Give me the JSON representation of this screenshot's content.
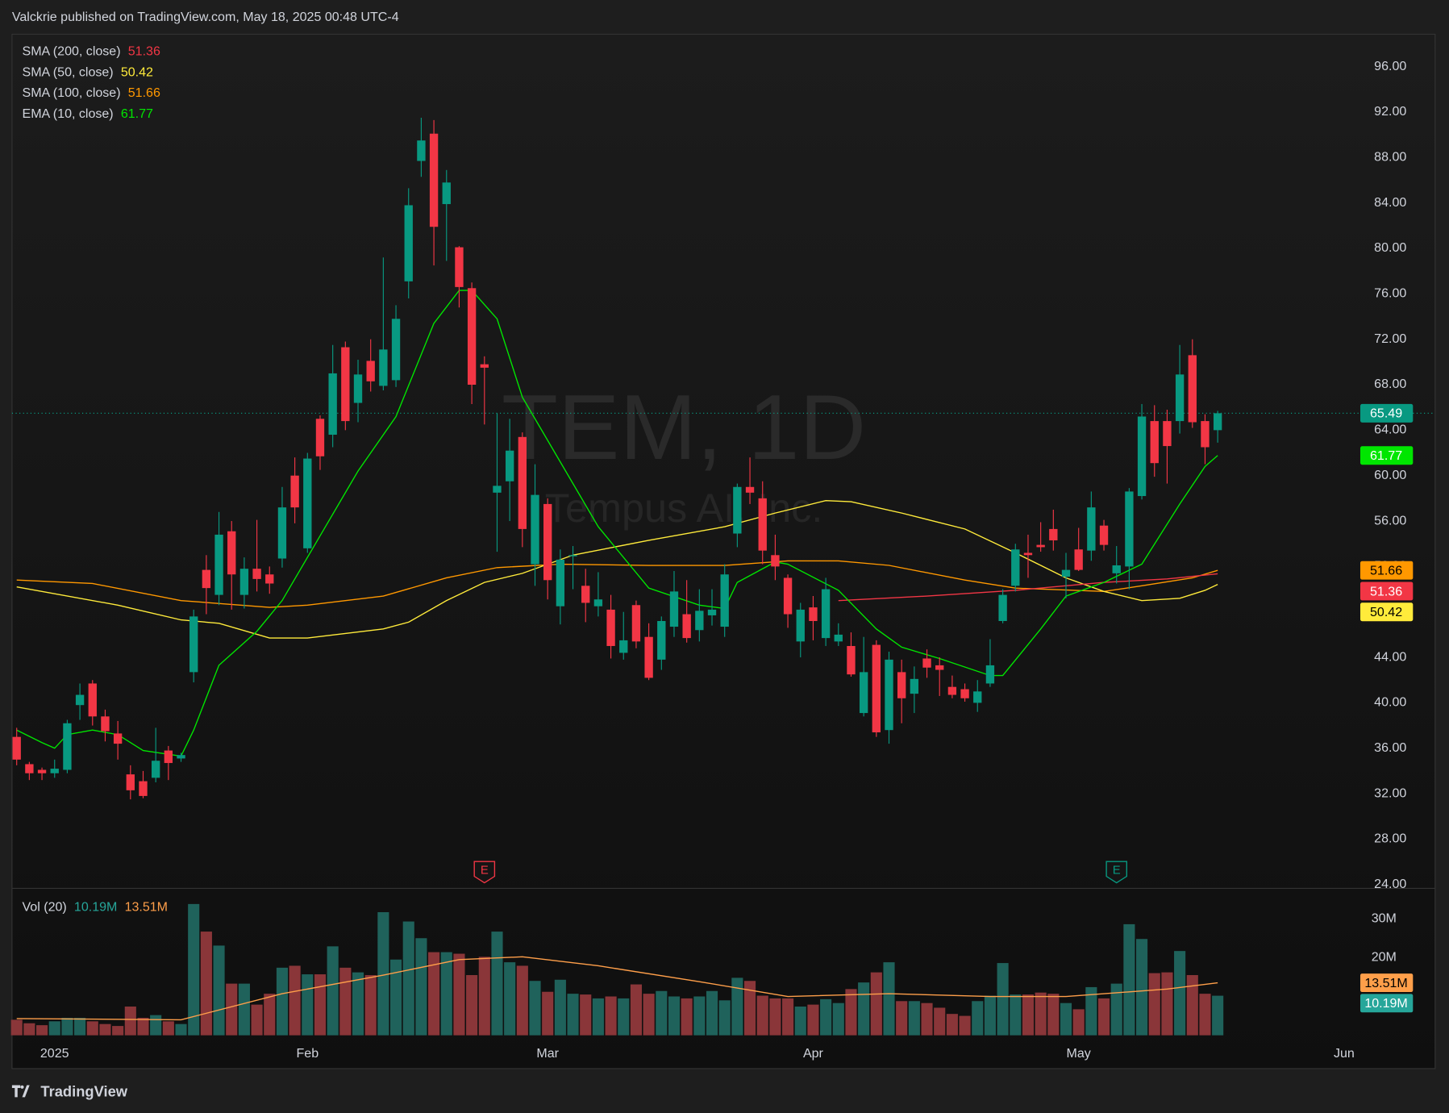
{
  "chart_data": {
    "type": "candlestick",
    "header": "Valckrie published on TradingView.com, May 18, 2025 00:48 UTC-4",
    "watermark_symbol": "TEM, 1D",
    "watermark_name": "Tempus AI, Inc.",
    "brand": "TradingView",
    "up_color": "#089981",
    "down_color": "#f23645",
    "volume_up_color": "#1f625b",
    "volume_down_color": "#8a3639",
    "last_price_color": "#089981",
    "open": [
      37.0,
      34.6,
      34.1,
      33.8,
      34.1,
      39.8,
      41.7,
      38.8,
      37.3,
      33.7,
      33.1,
      33.4,
      35.8,
      35.1,
      42.7,
      51.7,
      49.5,
      55.1,
      49.5,
      51.8,
      51.3,
      52.7,
      60.0,
      53.6,
      65.0,
      63.6,
      71.3,
      66.4,
      70.1,
      67.9,
      68.4,
      77.1,
      87.7,
      90.1,
      83.9,
      80.1,
      76.5,
      69.8,
      58.5,
      59.5,
      63.4,
      52.2,
      57.5,
      48.5,
      52.9,
      50.3,
      48.5,
      48.2,
      44.4,
      48.6,
      45.8,
      43.8,
      46.7,
      47.8,
      46.4,
      47.7,
      46.7,
      54.9,
      59.0,
      58.0,
      53.0,
      51.0,
      45.4,
      48.4,
      45.7,
      45.4,
      45.0,
      39.1,
      45.1,
      37.6,
      42.7,
      40.8,
      43.9,
      43.3,
      41.4,
      41.2,
      40.0,
      41.7,
      47.2,
      50.3,
      53.2,
      53.9,
      55.3,
      51.1,
      53.5,
      53.4,
      55.6,
      51.4,
      52.0,
      58.2,
      64.8,
      64.8,
      64.8,
      70.6,
      64.8,
      64.0
    ],
    "high": [
      37.8,
      34.8,
      34.3,
      35.0,
      38.5,
      41.7,
      42.0,
      39.4,
      38.4,
      34.5,
      34.0,
      37.8,
      36.2,
      35.6,
      48.2,
      53.0,
      56.8,
      56.0,
      52.8,
      56.1,
      52.0,
      59.0,
      61.6,
      62.0,
      65.3,
      71.5,
      71.8,
      70.2,
      72.0,
      79.2,
      75.0,
      85.3,
      91.5,
      91.3,
      86.9,
      80.2,
      77.0,
      70.5,
      65.5,
      65.0,
      63.8,
      61.0,
      58.0,
      53.5,
      53.8,
      51.8,
      51.5,
      49.5,
      48.0,
      49.0,
      47.0,
      47.6,
      51.6,
      50.8,
      50.0,
      50.0,
      52.2,
      59.3,
      61.6,
      59.5,
      54.8,
      51.3,
      48.8,
      49.4,
      51.0,
      47.0,
      46.2,
      45.8,
      45.5,
      44.5,
      43.8,
      43.2,
      44.7,
      44.0,
      42.4,
      41.7,
      42.0,
      45.6,
      50.0,
      54.0,
      54.8,
      55.9,
      57.0,
      53.2,
      55.4,
      58.6,
      56.1,
      53.8,
      58.9,
      66.3,
      66.2,
      65.8,
      71.5,
      72.0,
      65.4,
      65.7
    ],
    "low": [
      34.5,
      33.2,
      33.2,
      33.4,
      33.8,
      38.5,
      38.0,
      36.6,
      35.0,
      31.5,
      31.6,
      33.0,
      33.2,
      34.8,
      41.8,
      47.8,
      48.6,
      48.2,
      48.3,
      49.8,
      49.6,
      51.9,
      55.8,
      53.2,
      60.5,
      62.5,
      64.0,
      64.7,
      67.4,
      67.5,
      67.8,
      75.6,
      86.3,
      78.5,
      78.9,
      74.8,
      66.3,
      64.5,
      53.3,
      56.0,
      53.7,
      50.3,
      49.1,
      46.9,
      50.0,
      47.1,
      47.6,
      43.9,
      43.8,
      44.8,
      42.0,
      42.9,
      45.8,
      45.3,
      45.4,
      46.8,
      45.8,
      53.7,
      57.5,
      52.2,
      50.8,
      46.6,
      44.0,
      45.5,
      45.0,
      45.0,
      42.3,
      38.8,
      37.0,
      36.4,
      38.2,
      39.1,
      42.2,
      40.6,
      40.4,
      40.1,
      39.2,
      41.4,
      47.0,
      49.8,
      51.0,
      53.3,
      53.4,
      49.2,
      51.6,
      52.5,
      53.4,
      50.5,
      50.0,
      57.9,
      59.9,
      59.3,
      63.7,
      64.2,
      61.0,
      62.9
    ],
    "close": [
      35.0,
      33.8,
      33.8,
      34.2,
      38.2,
      40.7,
      38.8,
      37.5,
      36.4,
      32.3,
      31.8,
      34.9,
      34.7,
      35.4,
      47.6,
      50.1,
      54.8,
      51.3,
      51.8,
      50.9,
      50.5,
      57.2,
      57.2,
      61.5,
      61.7,
      69.0,
      64.8,
      68.9,
      68.3,
      71.1,
      73.8,
      83.8,
      89.5,
      81.9,
      85.8,
      76.6,
      68.0,
      69.5,
      59.1,
      62.2,
      55.3,
      58.3,
      50.8,
      52.6,
      53.0,
      48.8,
      49.1,
      45.0,
      45.5,
      45.4,
      42.2,
      47.2,
      49.8,
      45.7,
      48.1,
      48.2,
      51.3,
      59.0,
      58.5,
      53.4,
      52.0,
      47.8,
      48.2,
      47.2,
      50.0,
      46.0,
      42.5,
      42.7,
      37.4,
      43.8,
      40.4,
      42.1,
      43.1,
      42.9,
      40.7,
      40.4,
      41.0,
      43.3,
      49.5,
      53.5,
      53.0,
      53.7,
      54.3,
      51.7,
      51.7,
      57.2,
      53.9,
      52.1,
      58.6,
      65.2,
      61.1,
      62.6,
      68.9,
      64.7,
      62.5,
      65.49
    ],
    "xlim": [
      -0.37,
      112.2
    ],
    "xticks": [
      {
        "value": 3,
        "label": "2025"
      },
      {
        "value": 23,
        "label": "Feb"
      },
      {
        "value": 42,
        "label": "Mar"
      },
      {
        "value": 63,
        "label": "Apr"
      },
      {
        "value": 84,
        "label": "May"
      },
      {
        "value": 105,
        "label": "Jun"
      }
    ],
    "ylim": [
      23.75,
      98.85
    ],
    "yticks": [
      {
        "value": 24,
        "label": "24.00"
      },
      {
        "value": 28,
        "label": "28.00"
      },
      {
        "value": 32,
        "label": "32.00"
      },
      {
        "value": 36,
        "label": "36.00"
      },
      {
        "value": 40,
        "label": "40.00"
      },
      {
        "value": 44,
        "label": "44.00"
      },
      {
        "value": 48,
        "label": "48.00"
      },
      {
        "value": 52,
        "label": "52.00"
      },
      {
        "value": 56,
        "label": "56.00"
      },
      {
        "value": 60,
        "label": "60.00"
      },
      {
        "value": 64,
        "label": "64.00"
      },
      {
        "value": 68,
        "label": "68.00"
      },
      {
        "value": 72,
        "label": "72.00"
      },
      {
        "value": 76,
        "label": "76.00"
      },
      {
        "value": 80,
        "label": "80.00"
      },
      {
        "value": 84,
        "label": "84.00"
      },
      {
        "value": 88,
        "label": "88.00"
      },
      {
        "value": 92,
        "label": "92.00"
      },
      {
        "value": 96,
        "label": "96.00"
      }
    ],
    "grid": false,
    "overlays": [
      {
        "name": "SMA (200, close)",
        "color": "#f23645",
        "x": [
          65,
          72,
          79,
          86,
          91,
          95
        ],
        "values": [
          49.0,
          49.4,
          49.9,
          50.6,
          50.9,
          51.36
        ]
      },
      {
        "name": "SMA (50, close)",
        "color": "#ffeb3b",
        "x": [
          0,
          8,
          13,
          16,
          20,
          23,
          29,
          31,
          34,
          37,
          40,
          44,
          50,
          56,
          60,
          64,
          66,
          70,
          75,
          79,
          83,
          86,
          89,
          92,
          94,
          95
        ],
        "values": [
          50.2,
          48.6,
          47.3,
          47.0,
          45.7,
          45.7,
          46.5,
          47.1,
          49.0,
          50.6,
          51.4,
          53.0,
          54.3,
          55.5,
          56.7,
          57.8,
          57.7,
          56.7,
          55.3,
          53.2,
          51.0,
          49.8,
          49.0,
          49.2,
          49.9,
          50.42
        ]
      },
      {
        "name": "SMA (100, close)",
        "color": "#ff9800",
        "x": [
          0,
          6,
          13,
          20,
          23,
          29,
          34,
          38,
          43,
          50,
          56,
          61,
          65,
          69,
          75,
          79,
          86,
          89,
          93,
          95
        ],
        "values": [
          50.8,
          50.5,
          49.0,
          48.4,
          48.6,
          49.4,
          51.0,
          51.9,
          52.2,
          52.1,
          52.1,
          52.5,
          52.5,
          52.1,
          50.8,
          50.1,
          49.8,
          50.3,
          51.0,
          51.66
        ]
      },
      {
        "name": "EMA (10, close)",
        "color": "#00e600",
        "x": [
          0,
          2,
          3,
          4,
          6,
          8,
          10,
          13,
          14,
          16,
          19,
          21,
          24,
          27,
          30,
          33,
          35,
          36,
          38,
          40,
          43,
          46,
          50,
          54,
          56,
          57,
          60,
          61,
          65,
          68,
          70,
          73,
          77,
          78,
          81,
          83,
          86,
          89,
          92,
          94,
          95
        ],
        "values": [
          37.6,
          36.5,
          36.0,
          37.2,
          37.6,
          37.2,
          35.8,
          35.3,
          37.6,
          43.3,
          46.3,
          49.0,
          54.7,
          60.4,
          65.2,
          73.4,
          76.3,
          76.3,
          73.8,
          66.9,
          61.2,
          55.5,
          50.1,
          48.6,
          48.3,
          50.6,
          52.4,
          52.2,
          49.9,
          46.5,
          44.9,
          43.9,
          42.4,
          42.4,
          46.5,
          49.4,
          50.6,
          52.2,
          57.5,
          60.8,
          61.77
        ]
      }
    ],
    "events": [
      {
        "x": 37,
        "label": "E",
        "color": "#f23645"
      },
      {
        "x": 87,
        "label": "E",
        "color": "#089981"
      }
    ],
    "volume": {
      "name": "Vol (20)",
      "values": [
        4.0,
        3.1,
        2.6,
        3.6,
        4.5,
        4.5,
        3.6,
        2.9,
        2.4,
        7.4,
        4.5,
        5.2,
        3.6,
        2.9,
        33.8,
        26.7,
        23.1,
        13.3,
        13.3,
        7.9,
        10.7,
        17.4,
        17.9,
        15.7,
        15.7,
        22.9,
        17.4,
        16.2,
        15.5,
        31.7,
        19.5,
        29.3,
        25.0,
        21.4,
        21.4,
        21.0,
        15.5,
        20.2,
        26.7,
        18.8,
        17.9,
        14.0,
        11.2,
        14.3,
        10.7,
        10.5,
        9.5,
        10.0,
        9.5,
        13.1,
        10.7,
        11.4,
        10.0,
        9.5,
        10.0,
        11.4,
        9.0,
        14.8,
        14.0,
        10.2,
        9.5,
        9.5,
        7.4,
        7.9,
        9.3,
        8.3,
        11.9,
        13.6,
        16.2,
        18.8,
        8.8,
        8.8,
        8.3,
        7.1,
        5.5,
        5.0,
        8.8,
        10.2,
        18.6,
        10.5,
        10.5,
        11.0,
        10.7,
        8.3,
        6.7,
        12.4,
        9.5,
        13.3,
        28.6,
        24.8,
        16.0,
        16.2,
        21.7,
        15.5,
        10.7,
        10.19
      ],
      "last_label": "10.19M",
      "color": "#26a69a",
      "ma": {
        "color": "#ff9f4a",
        "x": [
          0,
          13,
          21,
          29,
          35,
          40,
          46,
          54,
          61,
          69,
          77,
          83,
          91,
          95
        ],
        "values": [
          4.3,
          4.0,
          10.7,
          15.5,
          19.5,
          20.2,
          17.9,
          13.8,
          10.0,
          10.7,
          10.0,
          10.0,
          11.9,
          13.51
        ],
        "last_label": "13.51M"
      },
      "ylim": [
        0,
        37.6
      ],
      "yticks": [
        {
          "value": 20,
          "label": "20M"
        },
        {
          "value": 30,
          "label": "30M"
        }
      ]
    }
  }
}
